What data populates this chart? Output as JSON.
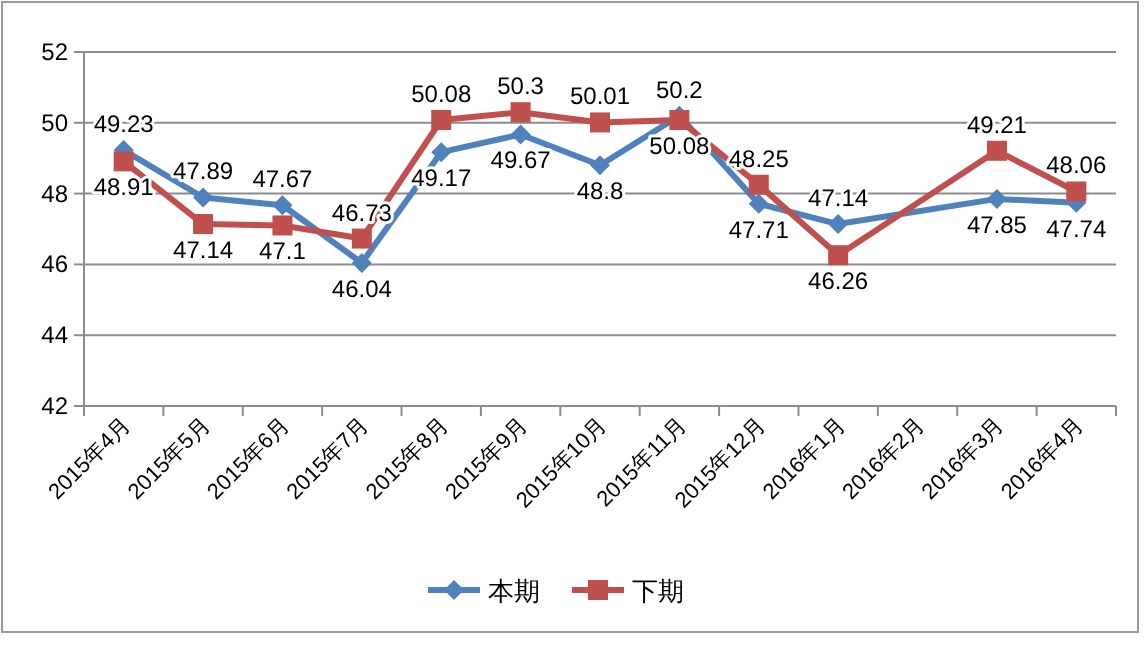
{
  "chart_data": {
    "type": "line",
    "categories": [
      "2015年4月",
      "2015年5月",
      "2015年6月",
      "2015年7月",
      "2015年8月",
      "2015年9月",
      "2015年10月",
      "2015年11月",
      "2015年12月",
      "2016年1月",
      "2016年2月",
      "2016年3月",
      "2016年4月"
    ],
    "series": [
      {
        "name": "本期",
        "color": "#4f81bd",
        "marker": "diamond",
        "values": [
          49.23,
          47.89,
          47.67,
          46.04,
          49.17,
          49.67,
          48.8,
          50.2,
          47.71,
          47.14,
          null,
          47.85,
          47.74
        ]
      },
      {
        "name": "下期",
        "color": "#c0504d",
        "marker": "square",
        "values": [
          48.91,
          47.14,
          47.1,
          46.73,
          50.08,
          50.3,
          50.01,
          50.08,
          48.25,
          46.26,
          null,
          49.21,
          48.06
        ]
      }
    ],
    "ylim": [
      42,
      52
    ],
    "yticks": [
      42,
      44,
      46,
      48,
      50,
      52
    ],
    "grid": "y",
    "legend": "bottom",
    "data_labels": true
  }
}
